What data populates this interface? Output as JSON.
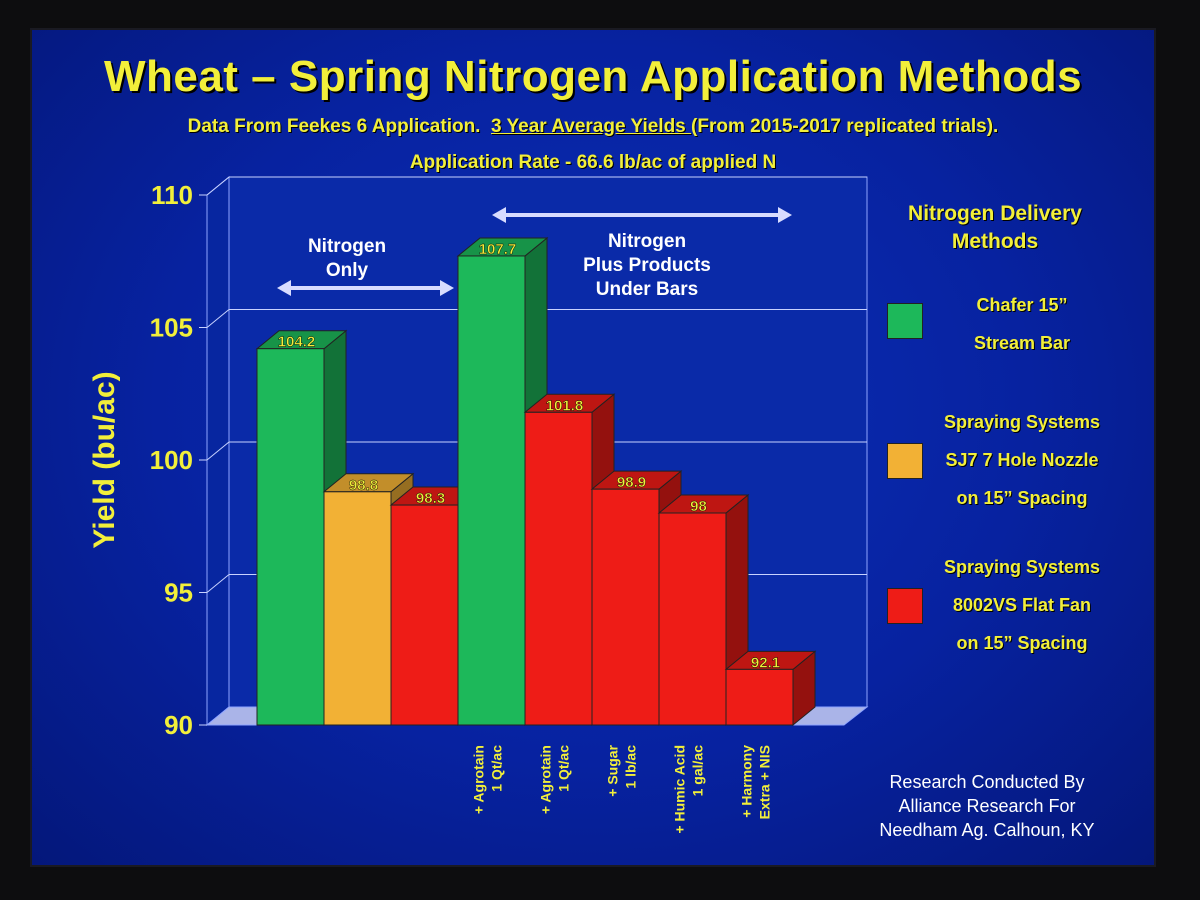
{
  "title": "Wheat – Spring Nitrogen Application Methods",
  "subtitle_pre": "Data From Feekes 6 Application.",
  "subtitle_underlined": "3 Year Average Yields ",
  "subtitle_post": "(From 2015-2017 replicated trials).",
  "rate": "Application Rate - 66.6 lb/ac of applied N",
  "annotations": {
    "nitrogen_only": [
      "Nitrogen",
      "Only"
    ],
    "plus_products": [
      "Nitrogen",
      "Plus Products",
      "Under Bars"
    ]
  },
  "legend": {
    "title": [
      "Nitrogen Delivery",
      "Methods"
    ],
    "items": [
      {
        "lines": [
          "Chafer 15”",
          "Stream Bar"
        ],
        "color": "#1db85a"
      },
      {
        "lines": [
          "Spraying Systems",
          "SJ7 7 Hole Nozzle",
          "on 15” Spacing"
        ],
        "color": "#f2b135"
      },
      {
        "lines": [
          "Spraying Systems",
          "8002VS Flat Fan",
          "on 15” Spacing"
        ],
        "color": "#ee1c17"
      }
    ]
  },
  "credit": [
    "Research Conducted By",
    "Alliance Research For",
    "Needham Ag. Calhoun, KY"
  ],
  "colors": {
    "green": "#1db85a",
    "orange": "#f2b135",
    "red": "#ee1c17",
    "label": "#f2ef3a"
  },
  "chart_data": {
    "type": "bar",
    "title": "Wheat – Spring Nitrogen Application Methods",
    "ylabel": "Yield (bu/ac)",
    "ylim": [
      90,
      110
    ],
    "yticks": [
      90,
      95,
      100,
      105,
      110
    ],
    "grid": true,
    "legend_position": "right",
    "bars": [
      {
        "value": 104.2,
        "label": "104.2",
        "method": "green",
        "category": []
      },
      {
        "value": 98.8,
        "label": "98.8",
        "method": "orange",
        "category": []
      },
      {
        "value": 98.3,
        "label": "98.3",
        "method": "red",
        "category": []
      },
      {
        "value": 107.7,
        "label": "107.7",
        "method": "green",
        "category": [
          "+ Agrotain",
          "1 Qt/ac"
        ]
      },
      {
        "value": 101.8,
        "label": "101.8",
        "method": "red",
        "category": [
          "+ Agrotain",
          "1 Qt/ac"
        ]
      },
      {
        "value": 98.9,
        "label": "98.9",
        "method": "red",
        "category": [
          "+ Sugar",
          "1 lb/ac"
        ]
      },
      {
        "value": 98,
        "label": "98",
        "method": "red",
        "category": [
          "+ Humic Acid",
          "1 gal/ac"
        ]
      },
      {
        "value": 92.1,
        "label": "92.1",
        "method": "red",
        "category": [
          "+ Harmony",
          "Extra + NIS"
        ]
      }
    ]
  }
}
